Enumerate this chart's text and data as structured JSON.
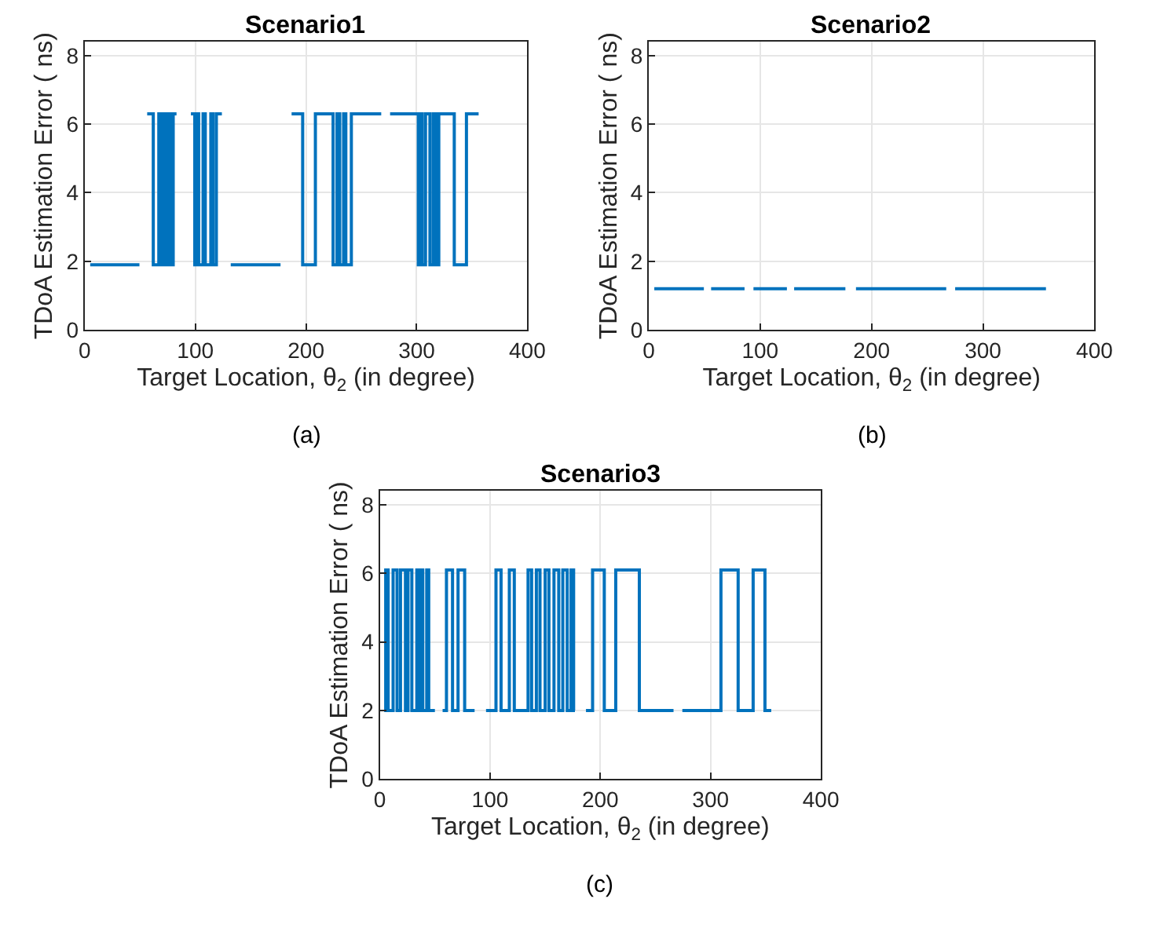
{
  "chart_data": [
    {
      "type": "step",
      "title": "Scenario1",
      "xlabel": "Target Location, θ$_{2}$ (in degree)",
      "ylabel": "TDoA Estimation Error ( ns)",
      "annotations": [
        "(a)"
      ],
      "xlim": [
        0,
        400
      ],
      "xticks": [
        0,
        100,
        200,
        300,
        400
      ],
      "ylim": [
        0,
        8.4
      ],
      "yticks": [
        0,
        2,
        4,
        6,
        8
      ],
      "grid": true,
      "series": [
        {
          "color": "#0072bd",
          "x": [
            5,
            49.5,
            53,
            56.5,
            62,
            67,
            69,
            71,
            73,
            75,
            77.5,
            80,
            83,
            89,
            96,
            99.5,
            101,
            103,
            107,
            109,
            114,
            116,
            119,
            124,
            128,
            132,
            177,
            182,
            187,
            197,
            208.5,
            224.5,
            228,
            230.5,
            234,
            236,
            241,
            268,
            272,
            276,
            301.5,
            303,
            305,
            308,
            312,
            315,
            317.5,
            320,
            334,
            345,
            356
          ],
          "values": [
            1.9,
            1.9,
            null,
            6.3,
            1.9,
            6.3,
            1.9,
            6.3,
            1.9,
            6.3,
            1.9,
            6.3,
            6.3,
            null,
            6.3,
            1.9,
            6.3,
            1.9,
            6.3,
            1.9,
            6.3,
            1.9,
            6.3,
            6.3,
            null,
            1.9,
            1.9,
            null,
            6.3,
            1.9,
            6.3,
            1.9,
            6.3,
            1.9,
            6.3,
            1.9,
            6.3,
            6.3,
            null,
            6.3,
            1.9,
            6.3,
            1.9,
            6.3,
            1.9,
            6.3,
            1.9,
            6.3,
            1.9,
            6.3,
            6.3
          ]
        }
      ]
    },
    {
      "type": "step",
      "title": "Scenario2",
      "xlabel": "Target Location, θ$_{2}$ (in degree)",
      "ylabel": "TDoA Estimation Error ( ns)",
      "annotations": [
        "(b)"
      ],
      "xlim": [
        0,
        400
      ],
      "xticks": [
        0,
        100,
        200,
        300,
        400
      ],
      "ylim": [
        0,
        8.4
      ],
      "yticks": [
        0,
        2,
        4,
        6,
        8
      ],
      "grid": true,
      "series": [
        {
          "color": "#0072bd",
          "x": [
            5,
            49.5,
            53,
            56,
            86,
            90,
            94,
            124,
            127,
            130.5,
            176.5,
            181,
            186,
            267,
            271,
            275,
            356.5
          ],
          "values": [
            1.2,
            1.2,
            null,
            1.2,
            1.2,
            null,
            1.2,
            1.2,
            null,
            1.2,
            1.2,
            null,
            1.2,
            1.2,
            null,
            1.2,
            1.2
          ]
        }
      ]
    },
    {
      "type": "step",
      "title": "Scenario3",
      "xlabel": "Target Location, θ$_{2}$ (in degree)",
      "ylabel": "TDoA Estimation Error ( ns)",
      "annotations": [
        "(c)"
      ],
      "xlim": [
        0,
        400
      ],
      "xticks": [
        0,
        100,
        200,
        300,
        400
      ],
      "ylim": [
        0,
        8.4
      ],
      "yticks": [
        0,
        2,
        4,
        6,
        8
      ],
      "grid": true,
      "series": [
        {
          "color": "#0072bd",
          "x": [
            4,
            5.4,
            7.6,
            12.1,
            15.7,
            18.8,
            23.3,
            25.6,
            29.1,
            33.6,
            35.4,
            38.1,
            39,
            42.6,
            44.4,
            50,
            53,
            57,
            60.5,
            66,
            71,
            77,
            86,
            91,
            96.4,
            105.4,
            110,
            117.5,
            122,
            134.5,
            137.7,
            142,
            145.3,
            150,
            153.4,
            158,
            162.3,
            166,
            170,
            173.5,
            175.8,
            177,
            182,
            187,
            193,
            203.6,
            214,
            235.4,
            266.4,
            270,
            274.4,
            309.4,
            325,
            338.6,
            349.3,
            355
          ],
          "values": [
            2,
            6.1,
            2,
            6.1,
            2,
            6.1,
            2,
            6.1,
            2,
            6.1,
            2,
            6.1,
            2,
            6.1,
            2,
            2,
            null,
            2,
            6.1,
            2,
            6.1,
            2,
            2,
            null,
            2,
            6.1,
            2,
            6.1,
            2,
            6.1,
            2,
            6.1,
            2,
            6.1,
            2,
            6.1,
            2,
            6.1,
            2,
            6.1,
            2,
            2,
            null,
            2,
            6.1,
            2,
            6.1,
            2,
            2,
            null,
            2,
            6.1,
            2,
            6.1,
            2,
            2
          ]
        }
      ]
    }
  ]
}
